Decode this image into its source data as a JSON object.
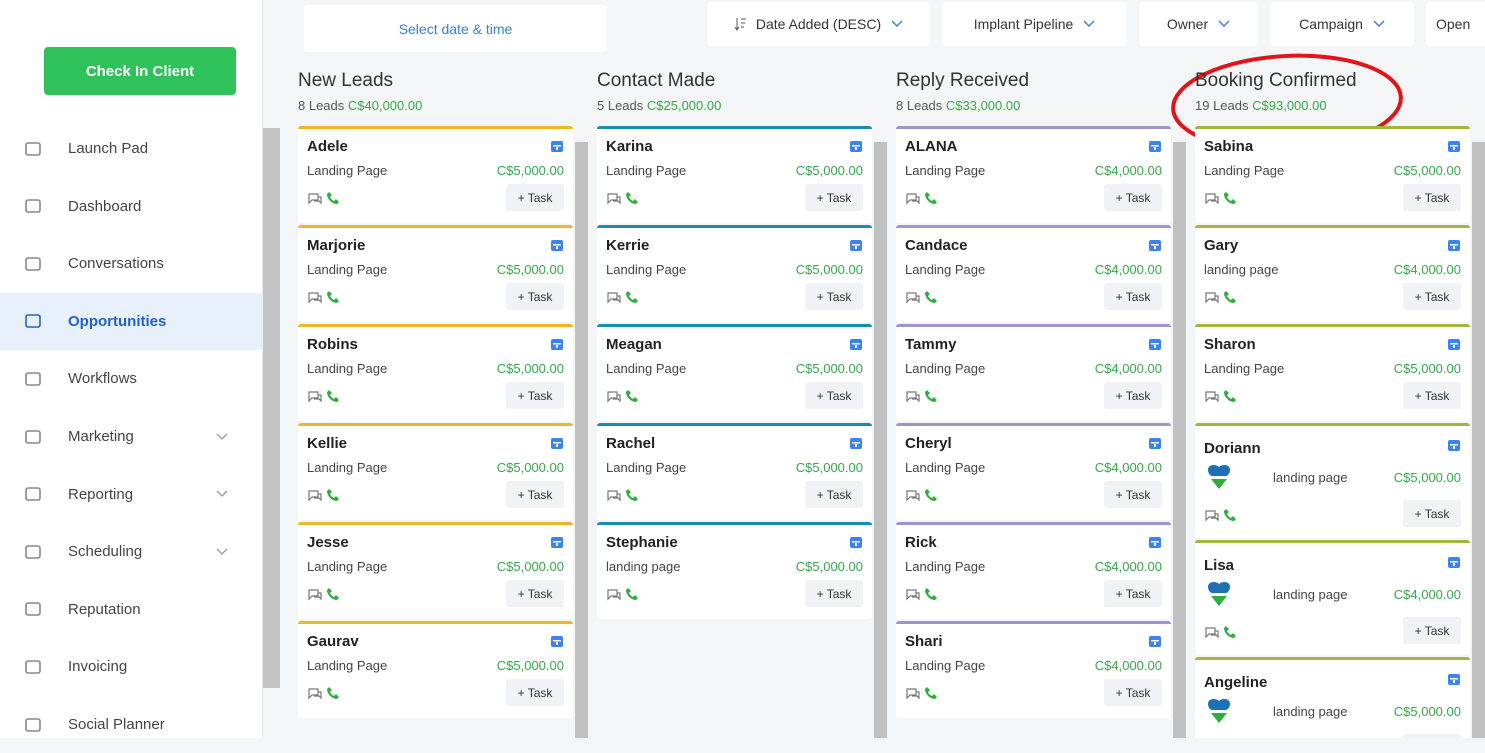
{
  "sidebar": {
    "check_in": "Check In Client",
    "nav": [
      {
        "label": "Launch Pad"
      },
      {
        "label": "Dashboard"
      },
      {
        "label": "Conversations"
      },
      {
        "label": "Opportunities",
        "active": true
      },
      {
        "label": "Workflows"
      },
      {
        "label": "Marketing",
        "expandable": true
      },
      {
        "label": "Reporting",
        "expandable": true
      },
      {
        "label": "Scheduling",
        "expandable": true
      },
      {
        "label": "Reputation"
      },
      {
        "label": "Invoicing"
      },
      {
        "label": "Social Planner"
      }
    ]
  },
  "toolbar": {
    "date_picker": "Select date & time",
    "filters": [
      "Date Added (DESC)",
      "Implant Pipeline",
      "Owner",
      "Campaign",
      "Open"
    ]
  },
  "task_button": "+ Task",
  "columns": [
    {
      "title": "New Leads",
      "count": "8 Leads",
      "amount": "C$40,000.00",
      "color": "#f0b429",
      "cards": [
        {
          "name": "Adele",
          "source": "Landing Page",
          "value": "C$5,000.00"
        },
        {
          "name": "Marjorie",
          "source": "Landing Page",
          "value": "C$5,000.00"
        },
        {
          "name": "Robins",
          "source": "Landing Page",
          "value": "C$5,000.00"
        },
        {
          "name": "Kellie",
          "source": "Landing Page",
          "value": "C$5,000.00"
        },
        {
          "name": "Jesse",
          "source": "Landing Page",
          "value": "C$5,000.00"
        },
        {
          "name": "Gaurav",
          "source": "Landing Page",
          "value": "C$5,000.00"
        }
      ]
    },
    {
      "title": "Contact Made",
      "count": "5 Leads",
      "amount": "C$25,000.00",
      "color": "#1b8ab0",
      "cards": [
        {
          "name": "Karina",
          "source": "Landing Page",
          "value": "C$5,000.00"
        },
        {
          "name": "Kerrie",
          "source": "Landing Page",
          "value": "C$5,000.00"
        },
        {
          "name": "Meagan",
          "source": "Landing Page",
          "value": "C$5,000.00"
        },
        {
          "name": "Rachel",
          "source": "Landing Page",
          "value": "C$5,000.00"
        },
        {
          "name": "Stephanie",
          "source": "landing page",
          "value": "C$5,000.00"
        }
      ]
    },
    {
      "title": "Reply Received",
      "count": "8 Leads",
      "amount": "C$33,000.00",
      "color": "#a193c9",
      "cards": [
        {
          "name": "ALANA",
          "source": "Landing Page",
          "value": "C$4,000.00"
        },
        {
          "name": "Candace",
          "source": "Landing Page",
          "value": "C$4,000.00"
        },
        {
          "name": "Tammy",
          "source": "Landing Page",
          "value": "C$4,000.00"
        },
        {
          "name": "Cheryl",
          "source": "Landing Page",
          "value": "C$4,000.00"
        },
        {
          "name": "Rick",
          "source": "Landing Page",
          "value": "C$4,000.00"
        },
        {
          "name": "Shari",
          "source": "Landing Page",
          "value": "C$4,000.00"
        }
      ]
    },
    {
      "title": "Booking Confirmed",
      "count": "19 Leads",
      "amount": "C$93,000.00",
      "color": "#a5b43a",
      "cards": [
        {
          "name": "Sabina",
          "source": "Landing Page",
          "value": "C$5,000.00"
        },
        {
          "name": "Gary",
          "source": "landing page",
          "value": "C$4,000.00"
        },
        {
          "name": "Sharon",
          "source": "Landing Page",
          "value": "C$5,000.00"
        },
        {
          "name": "Doriann",
          "source": "landing page",
          "value": "C$5,000.00",
          "avatar": true
        },
        {
          "name": "Lisa",
          "source": "landing page",
          "value": "C$4,000.00",
          "avatar": true
        },
        {
          "name": "Angeline",
          "source": "landing page",
          "value": "C$5,000.00",
          "avatar": true
        }
      ]
    }
  ]
}
